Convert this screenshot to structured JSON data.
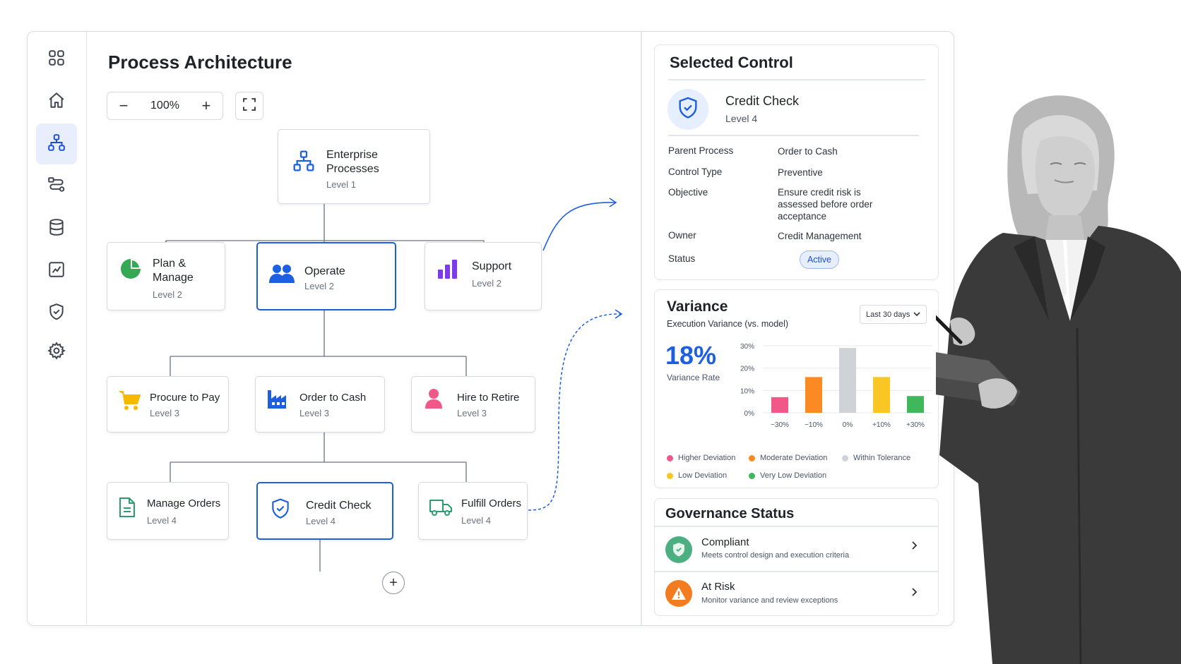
{
  "canvas": {
    "title": "Process Architecture",
    "zoom": "100%",
    "zoom_out_label": "−",
    "zoom_in_label": "+"
  },
  "sidebar": {
    "items": [
      {
        "icon": "grid-icon"
      },
      {
        "icon": "home-icon"
      },
      {
        "icon": "hierarchy-icon",
        "active": true
      },
      {
        "icon": "flow-icon"
      },
      {
        "icon": "database-icon"
      },
      {
        "icon": "chart-icon"
      },
      {
        "icon": "shield-check-icon"
      },
      {
        "icon": "gear-icon"
      }
    ]
  },
  "tree": {
    "root": {
      "title1": "Enterprise",
      "title2": "Processes",
      "level": "Level 1",
      "icon": "hierarchy-icon"
    },
    "level2": [
      {
        "title1": "Plan &",
        "title2": "Manage",
        "level": "Level 2",
        "icon": "pie-chart-icon"
      },
      {
        "title": "Operate",
        "level": "Level 2",
        "icon": "people-icon"
      },
      {
        "title": "Support",
        "level": "Level 2",
        "icon": "bar-chart-icon"
      }
    ],
    "level3": [
      {
        "title": "Procure to Pay",
        "level": "Level 3",
        "icon": "cart-icon"
      },
      {
        "title": "Order to Cash",
        "level": "Level 3",
        "icon": "factory-icon"
      },
      {
        "title": "Hire to Retire",
        "level": "Level 3",
        "icon": "person-icon"
      }
    ],
    "level4": [
      {
        "title": "Manage Orders",
        "level": "Level 4",
        "icon": "document-icon"
      },
      {
        "title": "Credit Check",
        "level": "Level 4",
        "icon": "shield-check-icon"
      },
      {
        "title": "Fulfill Orders",
        "level": "Level 4",
        "icon": "truck-icon"
      }
    ],
    "add_label": "+"
  },
  "selected_control": {
    "heading": "Selected Control",
    "name": "Credit Check",
    "level": "Level 4",
    "fields": {
      "parent_process_label": "Parent Process",
      "parent_process": "Order to Cash",
      "control_type_label": "Control Type",
      "control_type": "Preventive",
      "objective_label": "Objective",
      "objective_lines": [
        "Ensure credit risk is",
        "assessed before order",
        "acceptance"
      ],
      "owner_label": "Owner",
      "owner": "Credit Management",
      "status_label": "Status",
      "status": "Active"
    }
  },
  "variance": {
    "heading": "Variance",
    "subtitle": "Execution Variance (vs. model)",
    "period": "Last 30 days",
    "rate": "18%",
    "rate_label": "Variance Rate",
    "legend": [
      {
        "name": "Higher Deviation",
        "color": "#f0588a"
      },
      {
        "name": "Moderate Deviation",
        "color": "#fb8a22"
      },
      {
        "name": "Within Tolerance",
        "color": "#cfd2d6"
      },
      {
        "name": "Low Deviation",
        "color": "#f9c623"
      },
      {
        "name": "Very Low Deviation",
        "color": "#3fb75a"
      }
    ]
  },
  "chart_data": {
    "type": "bar",
    "categories": [
      "−30%",
      "−10%",
      "0%",
      "+10%",
      "+30%"
    ],
    "values": [
      7,
      16,
      29,
      16,
      7.5
    ],
    "colors": [
      "#f0588a",
      "#fb8a22",
      "#cfd2d6",
      "#f9c623",
      "#3fb75a"
    ],
    "y_ticks": [
      "0%",
      "10%",
      "20%",
      "30%"
    ],
    "ylim": [
      0,
      30
    ],
    "grid": true
  },
  "governance": {
    "heading": "Governance Status",
    "items": [
      {
        "title": "Compliant",
        "subtitle": "Meets control design and execution criteria",
        "color": "#4caf82",
        "icon": "check-shield-icon"
      },
      {
        "title": "At Risk",
        "subtitle": "Monitor variance and review exceptions",
        "color": "#f47c20",
        "icon": "warning-icon"
      }
    ]
  }
}
